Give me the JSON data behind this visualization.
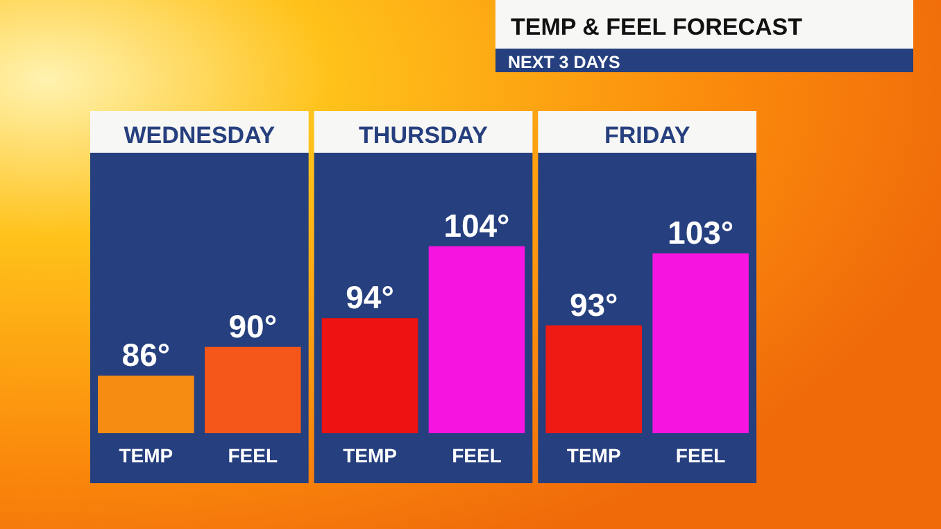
{
  "chart_data": [
    {
      "type": "other",
      "title": "TEMP & FEEL FORECAST",
      "subtitle": "NEXT 3 DAYS"
    },
    {
      "type": "bar",
      "title": "WEDNESDAY",
      "categories": [
        "TEMP",
        "FEEL"
      ],
      "values": [
        86,
        90
      ],
      "colors": [
        "#f78c12",
        "#f5561a"
      ],
      "value_labels": [
        "86°",
        "90°"
      ],
      "ylim": [
        78,
        117
      ],
      "tick_labels": "x"
    },
    {
      "type": "bar",
      "title": "THURSDAY",
      "categories": [
        "TEMP",
        "FEEL"
      ],
      "values": [
        94,
        104
      ],
      "colors": [
        "#ee1212",
        "#f614e0"
      ],
      "value_labels": [
        "94°",
        "104°"
      ],
      "ylim": [
        78,
        117
      ],
      "tick_labels": "x"
    },
    {
      "type": "bar",
      "title": "FRIDAY",
      "categories": [
        "TEMP",
        "FEEL"
      ],
      "values": [
        93,
        103
      ],
      "colors": [
        "#f01a14",
        "#f614e0"
      ],
      "value_labels": [
        "93°",
        "103°"
      ],
      "ylim": [
        78,
        117
      ],
      "tick_labels": "x"
    }
  ]
}
